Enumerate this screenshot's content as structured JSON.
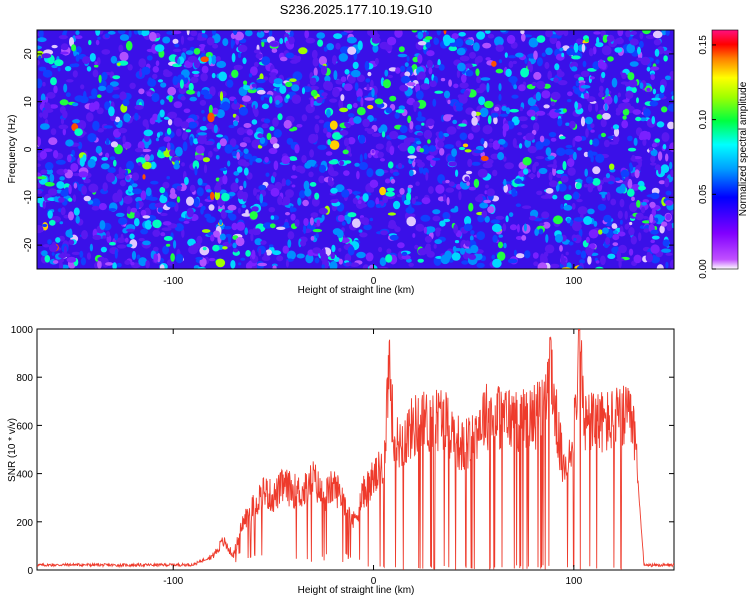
{
  "title": "S236.2025.177.10.19.G10",
  "colors": {
    "snr_line": "#ee3b2c",
    "frame": "#000000"
  },
  "chart_data": [
    {
      "type": "heatmap",
      "title": "S236.2025.177.10.19.G10",
      "xlabel": "Height of straight line (km)",
      "ylabel": "Frequency (Hz)",
      "xlim": [
        -168,
        150
      ],
      "ylim": [
        -25,
        25
      ],
      "x_ticks": [
        -100,
        0,
        100
      ],
      "x_tick_labels": [
        "-100",
        "0",
        "100"
      ],
      "y_ticks": [
        -20,
        -10,
        0,
        10,
        20
      ],
      "y_tick_labels": [
        "-20",
        "-10",
        "0",
        "10",
        "20"
      ],
      "colorbar": {
        "label": "Normalized spectral amplitude",
        "range": [
          0,
          0.16
        ],
        "ticks": [
          0.0,
          0.05,
          0.1,
          0.15
        ],
        "tick_labels": [
          "0.00",
          "0.05",
          "0.10",
          "0.15"
        ],
        "colormap": [
          "#ffffff",
          "#b000ff",
          "#0000ff",
          "#00aaff",
          "#00ffff",
          "#00ff40",
          "#ffff00",
          "#ff8000",
          "#ff0000",
          "#ff00aa"
        ]
      },
      "description_of_field": "dense noise-like speckle, mostly blue/purple with cyan and green blobs, a few yellow/orange peaks near 0.10-0.14"
    },
    {
      "type": "line",
      "xlabel": "Height of straight line (km)",
      "ylabel": "SNR (10 * v/v)",
      "xlim": [
        -168,
        150
      ],
      "ylim": [
        0,
        1000
      ],
      "x_ticks": [
        -100,
        0,
        100
      ],
      "x_tick_labels": [
        "-100",
        "0",
        "100"
      ],
      "y_ticks": [
        0,
        200,
        400,
        600,
        800,
        1000
      ],
      "y_tick_labels": [
        "0",
        "200",
        "400",
        "600",
        "800",
        "1000"
      ],
      "series": [
        {
          "color": "#ee3b2c",
          "x": [
            -168,
            -150,
            -130,
            -110,
            -90,
            -80,
            -75,
            -70,
            -65,
            -60,
            -55,
            -50,
            -45,
            -40,
            -35,
            -30,
            -25,
            -20,
            -15,
            -10,
            -5,
            0,
            5,
            8,
            10,
            15,
            20,
            25,
            30,
            35,
            40,
            45,
            50,
            55,
            60,
            65,
            70,
            75,
            80,
            85,
            88,
            90,
            95,
            100,
            103,
            105,
            110,
            115,
            120,
            125,
            130,
            135,
            140,
            150
          ],
          "y": [
            20,
            22,
            20,
            21,
            22,
            60,
            120,
            60,
            200,
            260,
            330,
            300,
            350,
            330,
            320,
            380,
            300,
            350,
            300,
            200,
            320,
            380,
            420,
            900,
            520,
            540,
            600,
            610,
            620,
            640,
            560,
            500,
            560,
            640,
            640,
            630,
            630,
            620,
            640,
            660,
            900,
            700,
            400,
            600,
            1000,
            600,
            620,
            610,
            620,
            630,
            600,
            20,
            20,
            20
          ]
        }
      ]
    }
  ]
}
